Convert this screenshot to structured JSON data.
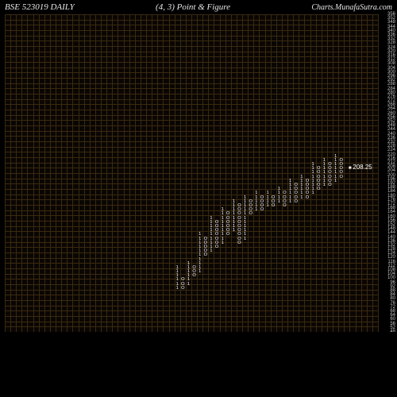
{
  "header": {
    "left": "BSE 523019 DAILY",
    "center": "(4,  3) Point & Figure",
    "right": "Charts.MunafaSutra.com"
  },
  "chart": {
    "type": "point-and-figure",
    "background_color": "#0a0603",
    "grid_color": "#3a2a10",
    "text_color": "#ffffff",
    "y_min": 48,
    "y_max": 356,
    "y_step": 4,
    "box_size": 4,
    "reversal": 3,
    "grid_cols": 66,
    "grid_rows": 60,
    "current_price_label": "208.25",
    "current_price_value": 208,
    "y_labels_visible": [
      356,
      348,
      340,
      332,
      324,
      316,
      308,
      300,
      292,
      284,
      276,
      268,
      260,
      252,
      244,
      236,
      228,
      220,
      212,
      204,
      196,
      188,
      180,
      172,
      164,
      156,
      148,
      140,
      132,
      124,
      116,
      108,
      100,
      92,
      84,
      76,
      68,
      60,
      52
    ],
    "columns": [
      {
        "x": 30,
        "type": "1",
        "low": 88,
        "high": 112
      },
      {
        "x": 31,
        "type": "O",
        "low": 88,
        "high": 100
      },
      {
        "x": 32,
        "type": "1",
        "low": 92,
        "high": 116
      },
      {
        "x": 33,
        "type": "O",
        "low": 100,
        "high": 112
      },
      {
        "x": 34,
        "type": "1",
        "low": 104,
        "high": 144
      },
      {
        "x": 35,
        "type": "O",
        "low": 120,
        "high": 140
      },
      {
        "x": 36,
        "type": "1",
        "low": 124,
        "high": 160
      },
      {
        "x": 37,
        "type": "O",
        "low": 128,
        "high": 156
      },
      {
        "x": 38,
        "type": "1",
        "low": 132,
        "high": 168
      },
      {
        "x": 39,
        "type": "O",
        "low": 140,
        "high": 164
      },
      {
        "x": 40,
        "type": "1",
        "low": 144,
        "high": 176
      },
      {
        "x": 41,
        "type": "O",
        "low": 132,
        "high": 172
      },
      {
        "x": 42,
        "type": "1",
        "low": 136,
        "high": 180
      },
      {
        "x": 43,
        "type": "O",
        "low": 160,
        "high": 176
      },
      {
        "x": 44,
        "type": "1",
        "low": 164,
        "high": 184
      },
      {
        "x": 45,
        "type": "O",
        "low": 164,
        "high": 180
      },
      {
        "x": 46,
        "type": "1",
        "low": 168,
        "high": 184
      },
      {
        "x": 47,
        "type": "O",
        "low": 168,
        "high": 180
      },
      {
        "x": 48,
        "type": "1",
        "low": 172,
        "high": 188
      },
      {
        "x": 49,
        "type": "O",
        "low": 168,
        "high": 184
      },
      {
        "x": 50,
        "type": "1",
        "low": 172,
        "high": 196
      },
      {
        "x": 51,
        "type": "O",
        "low": 172,
        "high": 192
      },
      {
        "x": 52,
        "type": "1",
        "low": 176,
        "high": 200
      },
      {
        "x": 53,
        "type": "O",
        "low": 176,
        "high": 196
      },
      {
        "x": 54,
        "type": "1",
        "low": 180,
        "high": 212
      },
      {
        "x": 55,
        "type": "O",
        "low": 184,
        "high": 208
      },
      {
        "x": 56,
        "type": "1",
        "low": 188,
        "high": 216
      },
      {
        "x": 57,
        "type": "O",
        "low": 188,
        "high": 212
      },
      {
        "x": 58,
        "type": "1",
        "low": 192,
        "high": 220
      },
      {
        "x": 59,
        "type": "O",
        "low": 196,
        "high": 216
      }
    ]
  }
}
